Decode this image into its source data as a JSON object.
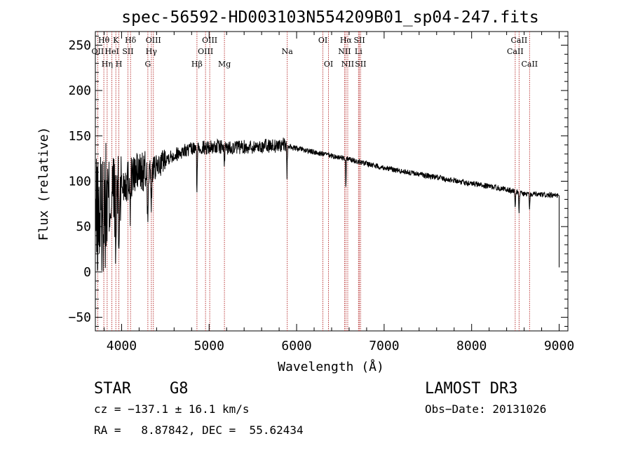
{
  "chart_data": {
    "type": "line",
    "title": "spec-56592-HD003103N554209B01_sp04-247.fits",
    "xlabel": "Wavelength (Å)",
    "ylabel": "Flux (relative)",
    "xlim": [
      3700,
      9100
    ],
    "ylim": [
      -65,
      265
    ],
    "xticks": [
      4000,
      5000,
      6000,
      7000,
      8000,
      9000
    ],
    "yticks": [
      -50,
      0,
      50,
      100,
      150,
      200,
      250
    ],
    "xtick_labels": [
      "4000",
      "5000",
      "6000",
      "7000",
      "8000",
      "9000"
    ],
    "ytick_labels": [
      "−50",
      "0",
      "50",
      "100",
      "150",
      "200",
      "250"
    ],
    "grid": false,
    "series": [
      {
        "name": "flux",
        "continuum": {
          "x": [
            3700,
            3800,
            3900,
            4000,
            4100,
            4200,
            4300,
            4400,
            4500,
            4700,
            4900,
            5100,
            5300,
            5500,
            5700,
            5850,
            5950,
            6100,
            6300,
            6500,
            6700,
            6900,
            7200,
            7500,
            7800,
            8100,
            8400,
            8600,
            8800,
            8970
          ],
          "y": [
            55,
            70,
            85,
            95,
            105,
            110,
            108,
            115,
            125,
            133,
            137,
            138,
            137,
            138,
            139,
            140,
            137,
            134,
            130,
            126,
            122,
            117,
            111,
            106,
            101,
            96,
            91,
            86,
            85,
            84
          ]
        },
        "noise": [
          {
            "x0": 3700,
            "x1": 3850,
            "amp": 70
          },
          {
            "x0": 3850,
            "x1": 4000,
            "amp": 50
          },
          {
            "x0": 4000,
            "x1": 4300,
            "amp": 25
          },
          {
            "x0": 4300,
            "x1": 4500,
            "amp": 14
          },
          {
            "x0": 4500,
            "x1": 5900,
            "amp": 8
          },
          {
            "x0": 5900,
            "x1": 9100,
            "amp": 3
          }
        ],
        "absorption": [
          {
            "x": 3934,
            "depth": 80,
            "width": 6
          },
          {
            "x": 3969,
            "depth": 70,
            "width": 6
          },
          {
            "x": 4101,
            "depth": 35,
            "width": 6
          },
          {
            "x": 4300,
            "depth": 55,
            "width": 6
          },
          {
            "x": 4340,
            "depth": 35,
            "width": 6
          },
          {
            "x": 4861,
            "depth": 45,
            "width": 5
          },
          {
            "x": 5175,
            "depth": 20,
            "width": 6
          },
          {
            "x": 5890,
            "depth": 40,
            "width": 4
          },
          {
            "x": 6563,
            "depth": 30,
            "width": 4
          },
          {
            "x": 8498,
            "depth": 15,
            "width": 5
          },
          {
            "x": 8542,
            "depth": 20,
            "width": 5
          },
          {
            "x": 8662,
            "depth": 18,
            "width": 5
          }
        ],
        "endpoint": {
          "x": 9000,
          "y": 5
        }
      }
    ],
    "lines": [
      {
        "x": 3727,
        "label": "OII",
        "row": 1
      },
      {
        "x": 3797,
        "label": "Hθ",
        "row": 0
      },
      {
        "x": 3835,
        "label": "Hη",
        "row": 2
      },
      {
        "x": 3889,
        "label": "HeI",
        "row": 1
      },
      {
        "x": 3934,
        "label": "K",
        "row": 0
      },
      {
        "x": 3969,
        "label": "H",
        "row": 2
      },
      {
        "x": 4072,
        "label": "SII",
        "row": 1
      },
      {
        "x": 4102,
        "label": "Hδ",
        "row": 0
      },
      {
        "x": 4300,
        "label": "G",
        "row": 2
      },
      {
        "x": 4340,
        "label": "Hγ",
        "row": 1
      },
      {
        "x": 4363,
        "label": "OIII",
        "row": 0
      },
      {
        "x": 4861,
        "label": "Hβ",
        "row": 2
      },
      {
        "x": 4959,
        "label": "OIII",
        "row": 1
      },
      {
        "x": 5007,
        "label": "OIII",
        "row": 0
      },
      {
        "x": 5175,
        "label": "Mg",
        "row": 2
      },
      {
        "x": 5893,
        "label": "Na",
        "row": 1
      },
      {
        "x": 6300,
        "label": "OI",
        "row": 0
      },
      {
        "x": 6364,
        "label": "OI",
        "row": 2
      },
      {
        "x": 6548,
        "label": "NII",
        "row": 1
      },
      {
        "x": 6563,
        "label": "Hα",
        "row": 0
      },
      {
        "x": 6584,
        "label": "NII",
        "row": 2
      },
      {
        "x": 6707,
        "label": "Li",
        "row": 1
      },
      {
        "x": 6717,
        "label": "SII",
        "row": 0
      },
      {
        "x": 6731,
        "label": "SII",
        "row": 2
      },
      {
        "x": 8498,
        "label": "CaII",
        "row": 1
      },
      {
        "x": 8542,
        "label": "CaII",
        "row": 0
      },
      {
        "x": 8662,
        "label": "CaII",
        "row": 2
      }
    ],
    "line_color": "#b22222"
  },
  "info": {
    "object_class": "STAR",
    "subclass": "G8",
    "survey": "LAMOST DR3",
    "redshift": "cz = −137.1 ± 16.1 km/s",
    "obs_date": "Obs−Date: 20131026",
    "coords": "RA =   8.87842, DEC =  55.62434"
  }
}
